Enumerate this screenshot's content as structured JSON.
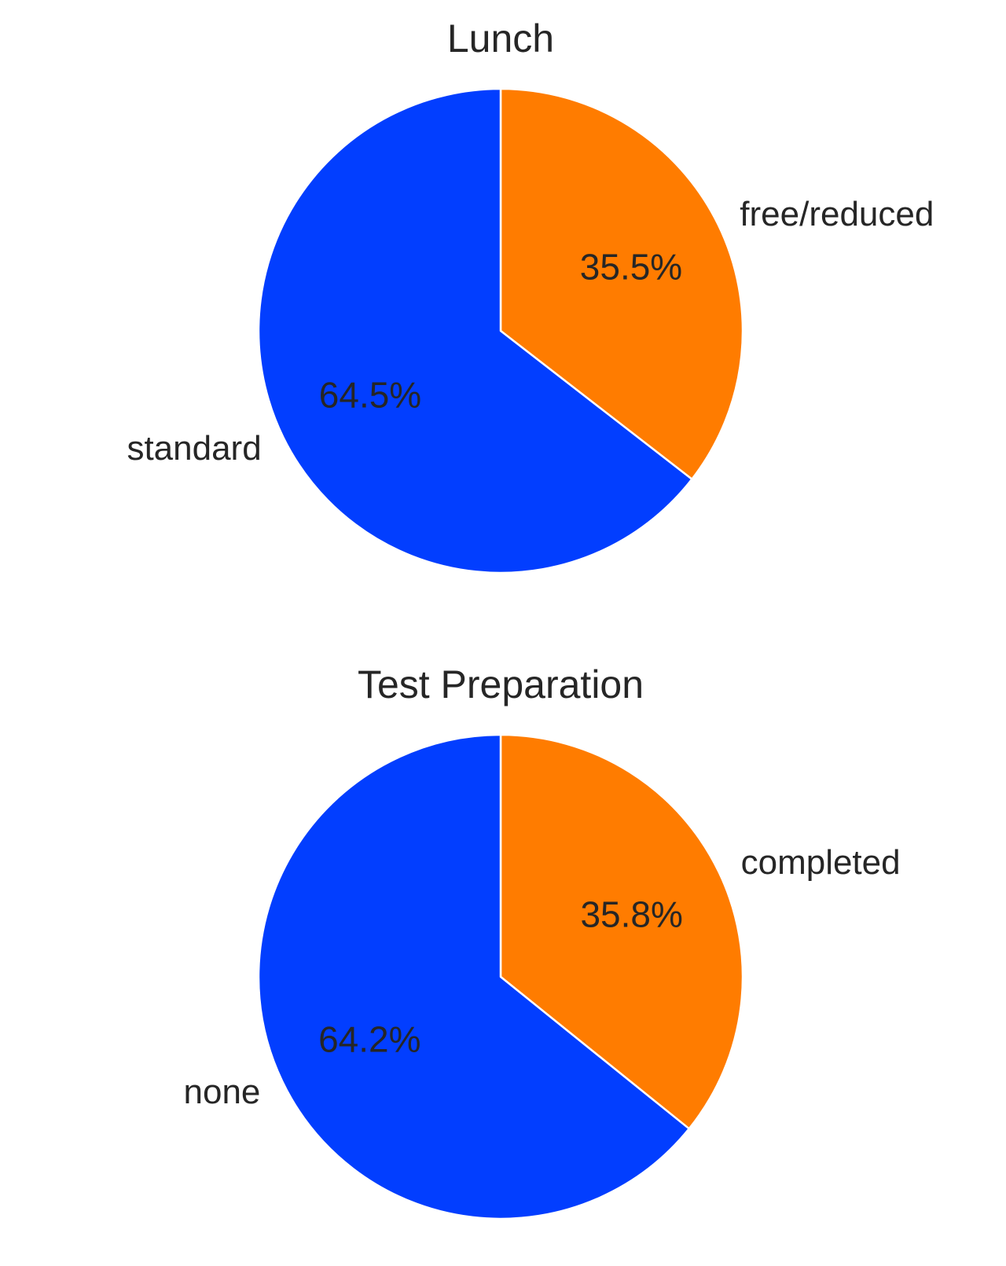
{
  "chart_data": [
    {
      "type": "pie",
      "title": "Lunch",
      "start_angle_deg": 90,
      "direction": "clockwise",
      "slices": [
        {
          "label": "free/reduced",
          "value": 35.5,
          "pct_label": "35.5%",
          "color": "#FF7C00"
        },
        {
          "label": "standard",
          "value": 64.5,
          "pct_label": "64.5%",
          "color": "#023EFF"
        }
      ]
    },
    {
      "type": "pie",
      "title": "Test Preparation",
      "start_angle_deg": 90,
      "direction": "clockwise",
      "slices": [
        {
          "label": "completed",
          "value": 35.8,
          "pct_label": "35.8%",
          "color": "#FF7C00"
        },
        {
          "label": "none",
          "value": 64.2,
          "pct_label": "64.2%",
          "color": "#023EFF"
        }
      ]
    }
  ]
}
